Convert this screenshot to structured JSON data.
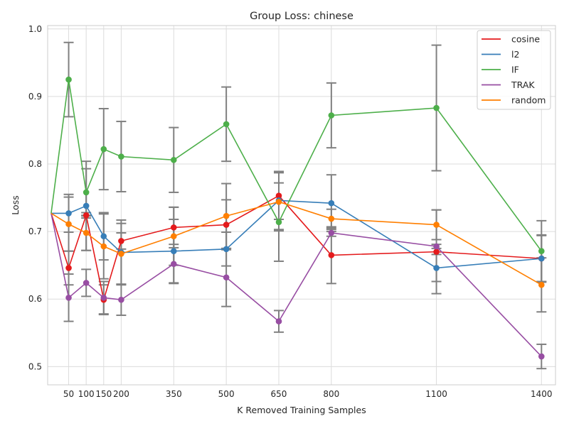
{
  "chart_data": {
    "type": "line",
    "title": "Group Loss: chinese",
    "xlabel": "K Removed Training Samples",
    "ylabel": "Loss",
    "xlim": [
      -10,
      1440
    ],
    "ylim": [
      0.473,
      1.005
    ],
    "x_ticks": [
      50,
      100,
      150,
      200,
      350,
      500,
      650,
      800,
      1100,
      1400
    ],
    "y_ticks": [
      0.5,
      0.6,
      0.7,
      0.8,
      0.9,
      1.0
    ],
    "grid": true,
    "legend_position": "top-right",
    "errorbar_color": "#808080",
    "x": [
      0,
      50,
      100,
      150,
      200,
      350,
      500,
      650,
      800,
      1100,
      1400
    ],
    "series": [
      {
        "name": "cosine",
        "color": "#e41a1c",
        "values": [
          0.727,
          0.646,
          0.724,
          0.599,
          0.686,
          0.706,
          0.71,
          0.753,
          0.665,
          0.67,
          0.66
        ],
        "errors": [
          null,
          0.025,
          0.004,
          0.022,
          0.012,
          0.03,
          0.037,
          0.035,
          0.042,
          0.062,
          0.034
        ]
      },
      {
        "name": "l2",
        "color": "#377eb8",
        "values": [
          0.727,
          0.727,
          0.738,
          0.693,
          0.669,
          0.671,
          0.674,
          0.746,
          0.742,
          0.646,
          0.66
        ],
        "errors": [
          null,
          0.028,
          0.066,
          0.035,
          0.048,
          0.047,
          0.025,
          0.043,
          0.042,
          0.02,
          0.035
        ]
      },
      {
        "name": "IF",
        "color": "#4daf4a",
        "values": [
          0.727,
          0.925,
          0.758,
          0.822,
          0.811,
          0.806,
          0.859,
          0.714,
          0.872,
          0.883,
          0.671
        ],
        "errors": [
          null,
          0.055,
          0.035,
          0.06,
          0.052,
          0.048,
          0.055,
          0.058,
          0.048,
          0.093,
          0.045
        ]
      },
      {
        "name": "TRAK",
        "color": "#984ea3",
        "values": [
          0.727,
          0.602,
          0.624,
          0.602,
          0.599,
          0.652,
          0.632,
          0.567,
          0.698,
          0.678,
          0.515
        ],
        "errors": [
          null,
          0.035,
          0.02,
          0.024,
          0.023,
          0.029,
          0.043,
          0.016,
          0.005,
          0.003,
          0.018
        ]
      },
      {
        "name": "random",
        "color": "#ff7f00",
        "values": [
          0.727,
          0.711,
          0.698,
          0.678,
          0.667,
          0.693,
          0.723,
          0.744,
          0.719,
          0.71,
          0.621
        ],
        "errors": [
          null,
          0.04,
          0.026,
          0.048,
          0.045,
          0.043,
          0.048,
          0.043,
          0.014,
          0.022,
          0.04
        ]
      }
    ]
  }
}
